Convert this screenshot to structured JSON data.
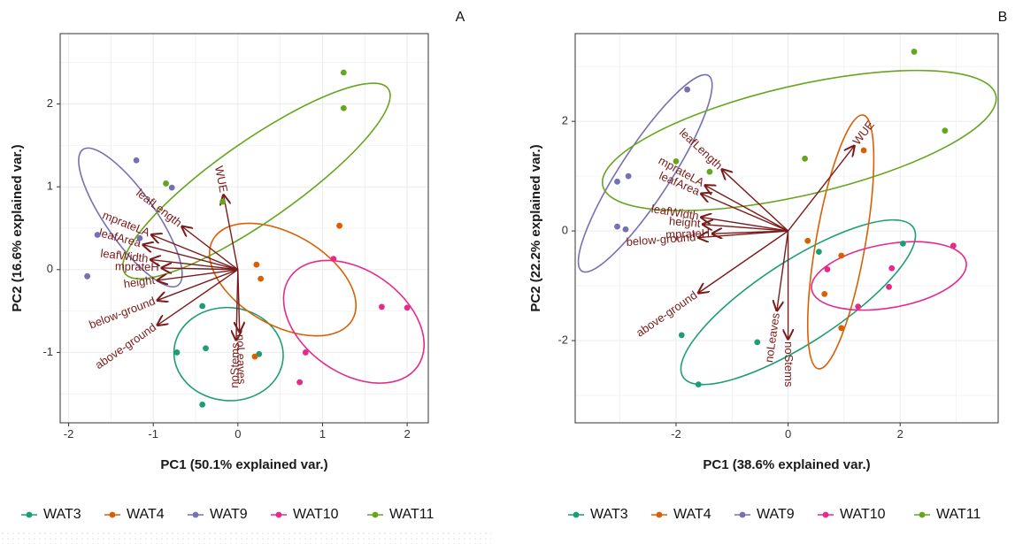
{
  "chart_data": [
    {
      "type": "scatter",
      "panel_label": "A",
      "title": "",
      "xlabel": "PC1 (50.1% explained var.)",
      "ylabel": "PC2 (16.6% explained var.)",
      "xlim": [
        -2.1,
        2.25
      ],
      "ylim": [
        -1.85,
        2.85
      ],
      "xticks": [
        -2,
        -1,
        0,
        1,
        2
      ],
      "yticks": [
        -1,
        0,
        1,
        2
      ],
      "grid": true,
      "legend_position": "bottom",
      "series": [
        {
          "name": "WAT3",
          "color": "#1b9e77",
          "points": [
            [
              -0.72,
              -1.0
            ],
            [
              -0.38,
              -0.95
            ],
            [
              -0.42,
              -0.44
            ],
            [
              -0.42,
              -1.63
            ],
            [
              0.25,
              -1.02
            ]
          ],
          "ellipse": {
            "cx": -0.11,
            "cy": -1.02,
            "rx": 0.55,
            "ry": 0.66,
            "rot": 85
          }
        },
        {
          "name": "WAT4",
          "color": "#d95f02",
          "points": [
            [
              0.22,
              0.06
            ],
            [
              0.27,
              -0.11
            ],
            [
              1.2,
              0.53
            ],
            [
              0.2,
              -1.05
            ]
          ],
          "ellipse": {
            "cx": 0.53,
            "cy": -0.12,
            "rx": 0.95,
            "ry": 0.55,
            "rot": -30
          }
        },
        {
          "name": "WAT9",
          "color": "#7570b3",
          "points": [
            [
              -1.2,
              1.32
            ],
            [
              -0.78,
              0.99
            ],
            [
              -1.16,
              0.38
            ],
            [
              -1.66,
              0.42
            ],
            [
              -1.78,
              -0.08
            ]
          ],
          "ellipse": {
            "cx": -1.27,
            "cy": 0.63,
            "rx": 0.98,
            "ry": 0.3,
            "rot": -55
          }
        },
        {
          "name": "WAT10",
          "color": "#e7298a",
          "points": [
            [
              1.13,
              0.13
            ],
            [
              1.7,
              -0.45
            ],
            [
              2.0,
              -0.46
            ],
            [
              0.8,
              -1.0
            ],
            [
              0.73,
              -1.36
            ]
          ],
          "ellipse": {
            "cx": 1.37,
            "cy": -0.63,
            "rx": 0.92,
            "ry": 0.62,
            "rot": -35
          }
        },
        {
          "name": "WAT11",
          "color": "#66a61e",
          "points": [
            [
              1.25,
              2.38
            ],
            [
              1.25,
              1.95
            ],
            [
              -0.85,
              1.04
            ],
            [
              -0.18,
              0.82
            ]
          ],
          "ellipse": {
            "cx": 0.22,
            "cy": 1.07,
            "rx": 1.9,
            "ry": 0.48,
            "rot": 35
          }
        }
      ],
      "loadings": [
        {
          "label": "WUE",
          "x": -0.17,
          "y": 0.9
        },
        {
          "label": "leafLength",
          "x": -0.66,
          "y": 0.52
        },
        {
          "label": "mprateLA",
          "x": -1.02,
          "y": 0.42
        },
        {
          "label": "leafArea",
          "x": -1.12,
          "y": 0.3
        },
        {
          "label": "leafWidth",
          "x": -1.03,
          "y": 0.12
        },
        {
          "label": "mprateH",
          "x": -0.9,
          "y": 0.02
        },
        {
          "label": "height",
          "x": -0.95,
          "y": -0.13
        },
        {
          "label": "below-ground",
          "x": -0.95,
          "y": -0.37
        },
        {
          "label": "above-ground",
          "x": -0.95,
          "y": -0.67
        },
        {
          "label": "noStems",
          "x": -0.02,
          "y": -0.85
        },
        {
          "label": "noLeaves",
          "x": 0.02,
          "y": -0.75
        }
      ]
    },
    {
      "type": "scatter",
      "panel_label": "B",
      "title": "",
      "xlabel": "PC1 (38.6% explained var.)",
      "ylabel": "PC2 (22.2% explained var.)",
      "xlim": [
        -3.8,
        3.75
      ],
      "ylim": [
        -3.5,
        3.6
      ],
      "xticks": [
        -2,
        0,
        2
      ],
      "yticks": [
        -2,
        0,
        2
      ],
      "grid": true,
      "legend_position": "bottom",
      "series": [
        {
          "name": "WAT3",
          "color": "#1b9e77",
          "points": [
            [
              -1.9,
              -1.9
            ],
            [
              -1.6,
              -2.8
            ],
            [
              -0.55,
              -2.03
            ],
            [
              0.55,
              -0.38
            ],
            [
              2.05,
              -0.23
            ]
          ],
          "ellipse": {
            "cx": 0.18,
            "cy": -1.3,
            "rx": 2.45,
            "ry": 0.75,
            "rot": 33
          }
        },
        {
          "name": "WAT4",
          "color": "#d95f02",
          "points": [
            [
              0.35,
              -0.18
            ],
            [
              0.65,
              -1.15
            ],
            [
              0.95,
              -0.45
            ],
            [
              0.95,
              -1.77
            ],
            [
              1.35,
              1.47
            ]
          ],
          "ellipse": {
            "cx": 0.94,
            "cy": -0.2,
            "rx": 2.3,
            "ry": 0.45,
            "rot": 80
          }
        },
        {
          "name": "WAT9",
          "color": "#7570b3",
          "points": [
            [
              -3.05,
              0.9
            ],
            [
              -2.85,
              1.0
            ],
            [
              -3.05,
              0.08
            ],
            [
              -2.9,
              0.03
            ],
            [
              -1.8,
              2.58
            ]
          ],
          "ellipse": {
            "cx": -2.55,
            "cy": 1.05,
            "rx": 2.08,
            "ry": 0.46,
            "rot": 57
          }
        },
        {
          "name": "WAT10",
          "color": "#e7298a",
          "points": [
            [
              0.7,
              -0.7
            ],
            [
              1.25,
              -1.38
            ],
            [
              1.8,
              -1.02
            ],
            [
              1.85,
              -0.68
            ],
            [
              2.95,
              -0.27
            ]
          ],
          "ellipse": {
            "cx": 1.8,
            "cy": -0.82,
            "rx": 1.4,
            "ry": 0.58,
            "rot": 10
          }
        },
        {
          "name": "WAT11",
          "color": "#66a61e",
          "points": [
            [
              -2.0,
              1.27
            ],
            [
              -1.4,
              1.08
            ],
            [
              0.3,
              1.32
            ],
            [
              2.25,
              3.27
            ],
            [
              2.8,
              1.83
            ]
          ],
          "ellipse": {
            "cx": 0.2,
            "cy": 1.65,
            "rx": 3.6,
            "ry": 1.0,
            "rot": 13
          }
        }
      ],
      "loadings": [
        {
          "label": "WUE",
          "x": 1.18,
          "y": 1.55
        },
        {
          "label": "leafLength",
          "x": -1.18,
          "y": 1.12
        },
        {
          "label": "mprateLA",
          "x": -1.48,
          "y": 0.83
        },
        {
          "label": "leafArea",
          "x": -1.55,
          "y": 0.68
        },
        {
          "label": "leafWidth",
          "x": -1.55,
          "y": 0.25
        },
        {
          "label": "height",
          "x": -1.52,
          "y": 0.12
        },
        {
          "label": "mprateH",
          "x": -1.35,
          "y": -0.05
        },
        {
          "label": "below-ground",
          "x": -1.6,
          "y": -0.12
        },
        {
          "label": "above-ground",
          "x": -1.6,
          "y": -1.13
        },
        {
          "label": "noLeaves",
          "x": -0.2,
          "y": -1.45
        },
        {
          "label": "noStems",
          "x": 0.0,
          "y": -1.97
        }
      ]
    }
  ],
  "colors": {
    "arrow": "#7b1a1a",
    "grid": "#ebebeb",
    "panel_border": "#333333"
  }
}
